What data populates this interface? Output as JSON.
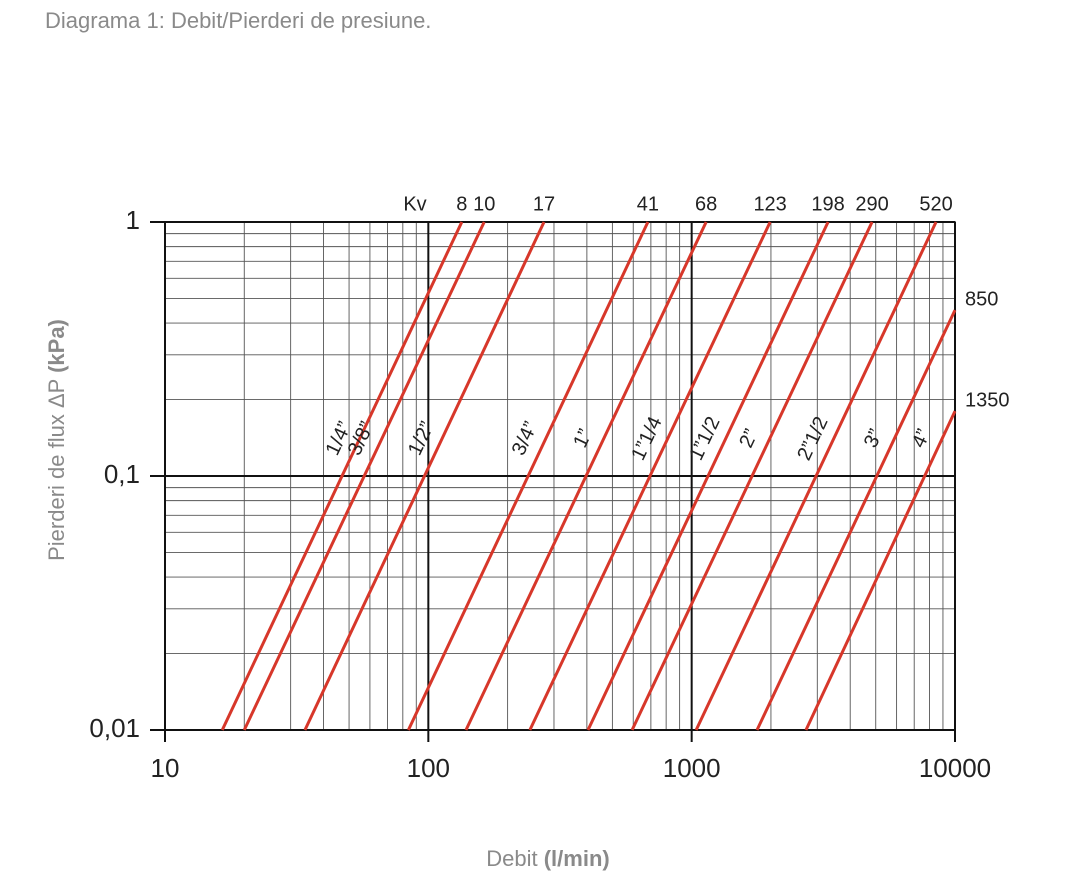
{
  "chart_data": {
    "type": "line",
    "title": "Diagrama 1: Debit/Pierderi de presiune.",
    "xlabel": "Debit",
    "xlabel_unit": "(l/min)",
    "ylabel": "Pierderi de flux ΔP",
    "ylabel_unit": "(kPa)",
    "kv_label": "Kv",
    "xscale": "log",
    "yscale": "log",
    "grid": true,
    "xlim": [
      10,
      10000
    ],
    "xticks": [
      10,
      100,
      1000,
      10000
    ],
    "ylim": [
      0.01,
      1
    ],
    "yticks": [
      {
        "value": 0.01,
        "label": "0,01"
      },
      {
        "value": 0.1,
        "label": "0,1"
      },
      1
    ],
    "series": [
      {
        "name": "1/4”",
        "kv": 8,
        "color": "#d7372a",
        "x": [
          16.5,
          134
        ],
        "values": [
          0.01,
          1
        ]
      },
      {
        "name": "3/8”",
        "kv": 10,
        "color": "#d7372a",
        "x": [
          20,
          163
        ],
        "values": [
          0.01,
          1
        ]
      },
      {
        "name": "1/2”",
        "kv": 17,
        "color": "#d7372a",
        "x": [
          34,
          275
        ],
        "values": [
          0.01,
          1
        ]
      },
      {
        "name": "3/4”",
        "kv": 41,
        "color": "#d7372a",
        "x": [
          84,
          682
        ],
        "values": [
          0.01,
          1
        ]
      },
      {
        "name": "1”",
        "kv": 68,
        "color": "#d7372a",
        "x": [
          139,
          1135
        ],
        "values": [
          0.01,
          1
        ]
      },
      {
        "name": "1”1/4",
        "kv": 123,
        "color": "#d7372a",
        "x": [
          243,
          1986
        ],
        "values": [
          0.01,
          1
        ]
      },
      {
        "name": "1”1/2",
        "kv": 198,
        "color": "#d7372a",
        "x": [
          404,
          3296
        ],
        "values": [
          0.01,
          1
        ]
      },
      {
        "name": "2”",
        "kv": 290,
        "color": "#d7372a",
        "x": [
          594,
          4842
        ],
        "values": [
          0.01,
          1
        ]
      },
      {
        "name": "2”1/2",
        "kv": 520,
        "color": "#d7372a",
        "x": [
          1040,
          8472
        ],
        "values": [
          0.01,
          1
        ]
      },
      {
        "name": "3”",
        "kv": 850,
        "color": "#d7372a",
        "x": [
          1771,
          10000
        ],
        "values": [
          0.01,
          0.45
        ]
      },
      {
        "name": "4”",
        "kv": 1350,
        "color": "#d7372a",
        "x": [
          2717,
          10000
        ],
        "values": [
          0.01,
          0.18
        ]
      }
    ]
  }
}
